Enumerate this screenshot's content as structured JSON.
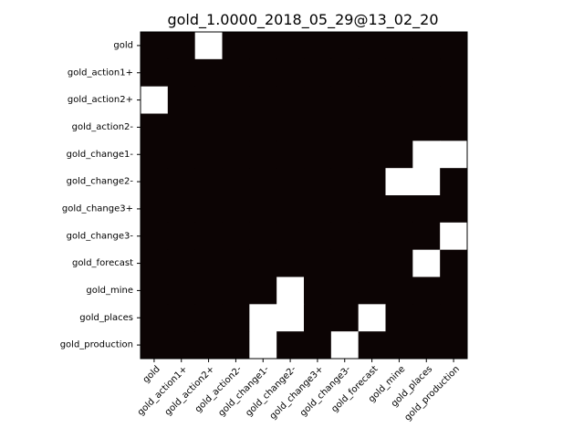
{
  "chart_data": {
    "type": "heatmap",
    "title": "gold_1.0000_2018_05_29@13_02_20",
    "xlabel": "",
    "ylabel": "",
    "grid": false,
    "legend": "none",
    "colors": {
      "zero": "#0c0404",
      "one": "#ffffff",
      "axis": "#000000"
    },
    "x_categories": [
      "gold",
      "gold_action1+",
      "gold_action2+",
      "gold_action2-",
      "gold_change1-",
      "gold_change2-",
      "gold_change3+",
      "gold_change3-",
      "gold_forecast",
      "gold_mine",
      "gold_places",
      "gold_production"
    ],
    "y_categories": [
      "gold",
      "gold_action1+",
      "gold_action2+",
      "gold_action2-",
      "gold_change1-",
      "gold_change2-",
      "gold_change3+",
      "gold_change3-",
      "gold_forecast",
      "gold_mine",
      "gold_places",
      "gold_production"
    ],
    "values": [
      [
        0,
        0,
        1,
        0,
        0,
        0,
        0,
        0,
        0,
        0,
        0,
        0
      ],
      [
        0,
        0,
        0,
        0,
        0,
        0,
        0,
        0,
        0,
        0,
        0,
        0
      ],
      [
        1,
        0,
        0,
        0,
        0,
        0,
        0,
        0,
        0,
        0,
        0,
        0
      ],
      [
        0,
        0,
        0,
        0,
        0,
        0,
        0,
        0,
        0,
        0,
        0,
        0
      ],
      [
        0,
        0,
        0,
        0,
        0,
        0,
        0,
        0,
        0,
        0,
        1,
        1
      ],
      [
        0,
        0,
        0,
        0,
        0,
        0,
        0,
        0,
        0,
        1,
        1,
        0
      ],
      [
        0,
        0,
        0,
        0,
        0,
        0,
        0,
        0,
        0,
        0,
        0,
        0
      ],
      [
        0,
        0,
        0,
        0,
        0,
        0,
        0,
        0,
        0,
        0,
        0,
        1
      ],
      [
        0,
        0,
        0,
        0,
        0,
        0,
        0,
        0,
        0,
        0,
        1,
        0
      ],
      [
        0,
        0,
        0,
        0,
        0,
        1,
        0,
        0,
        0,
        0,
        0,
        0
      ],
      [
        0,
        0,
        0,
        0,
        1,
        1,
        0,
        0,
        1,
        0,
        0,
        0
      ],
      [
        0,
        0,
        0,
        0,
        1,
        0,
        0,
        1,
        0,
        0,
        0,
        0
      ]
    ]
  }
}
